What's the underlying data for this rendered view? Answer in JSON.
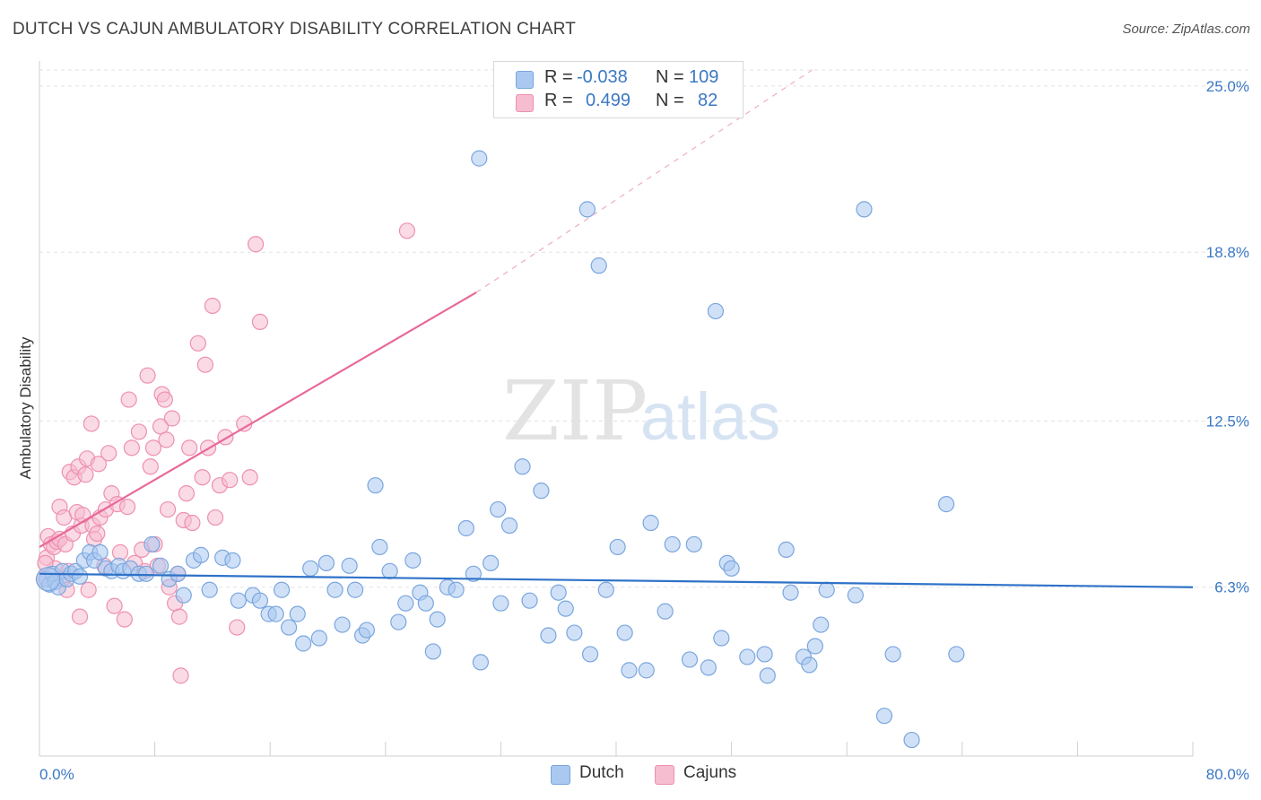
{
  "header": {
    "title": "DUTCH VS CAJUN AMBULATORY DISABILITY CORRELATION CHART",
    "source": "Source: ZipAtlas.com"
  },
  "watermark": {
    "zip": "ZIP",
    "atlas": "atlas"
  },
  "legend": {
    "r_label": "R =",
    "n_label": "N =",
    "dutch": {
      "r": "-0.038",
      "n": "109"
    },
    "cajun": {
      "r": "0.499",
      "n": "82"
    }
  },
  "colors": {
    "dutch_fill": "#aac8f0",
    "dutch_stroke": "#7aa6de",
    "dutch_line": "#2f72c8",
    "cajun_fill": "#f6bcd0",
    "cajun_stroke": "#ee90b0",
    "cajun_line": "#e8689a",
    "axis_label": "#3b78c4"
  },
  "chart_data": {
    "type": "scatter",
    "title": "DUTCH VS CAJUN AMBULATORY DISABILITY CORRELATION CHART",
    "xlabel": "",
    "ylabel": "Ambulatory Disability",
    "xlim": [
      0,
      80
    ],
    "ylim": [
      0,
      25.6
    ],
    "x_tick_labels": [
      "0.0%",
      "80.0%"
    ],
    "y_ticks": [
      6.3,
      12.5,
      18.8,
      25.0
    ],
    "y_tick_labels": [
      "6.3%",
      "12.5%",
      "18.8%",
      "25.0%"
    ],
    "grid": true,
    "legend_position": "top-center",
    "series": [
      {
        "name": "Dutch",
        "r": -0.038,
        "n": 109,
        "trend": {
          "x": [
            0,
            80
          ],
          "y": [
            6.8,
            6.3
          ]
        },
        "points": [
          [
            0.5,
            6.6
          ],
          [
            0.7,
            6.4
          ],
          [
            0.9,
            6.8
          ],
          [
            1.1,
            6.5
          ],
          [
            1.3,
            6.3
          ],
          [
            1.6,
            6.9
          ],
          [
            1.9,
            6.6
          ],
          [
            2.2,
            6.8
          ],
          [
            2.5,
            6.9
          ],
          [
            2.8,
            6.7
          ],
          [
            3.1,
            7.3
          ],
          [
            3.5,
            7.6
          ],
          [
            3.8,
            7.3
          ],
          [
            4.2,
            7.6
          ],
          [
            4.6,
            7.0
          ],
          [
            5.0,
            6.9
          ],
          [
            5.5,
            7.1
          ],
          [
            5.8,
            6.9
          ],
          [
            6.3,
            7.0
          ],
          [
            6.9,
            6.8
          ],
          [
            7.4,
            6.8
          ],
          [
            7.8,
            7.9
          ],
          [
            8.4,
            7.1
          ],
          [
            9.0,
            6.6
          ],
          [
            9.6,
            6.8
          ],
          [
            10.0,
            6.0
          ],
          [
            10.7,
            7.3
          ],
          [
            11.2,
            7.5
          ],
          [
            11.8,
            6.2
          ],
          [
            12.7,
            7.4
          ],
          [
            13.4,
            7.3
          ],
          [
            13.8,
            5.8
          ],
          [
            14.8,
            6.0
          ],
          [
            15.3,
            5.8
          ],
          [
            15.9,
            5.3
          ],
          [
            16.4,
            5.3
          ],
          [
            16.8,
            6.2
          ],
          [
            17.3,
            4.8
          ],
          [
            17.9,
            5.3
          ],
          [
            18.3,
            4.2
          ],
          [
            18.8,
            7.0
          ],
          [
            19.4,
            4.4
          ],
          [
            19.9,
            7.2
          ],
          [
            20.5,
            6.2
          ],
          [
            21.0,
            4.9
          ],
          [
            21.5,
            7.1
          ],
          [
            21.9,
            6.2
          ],
          [
            22.4,
            4.5
          ],
          [
            22.7,
            4.7
          ],
          [
            23.3,
            10.1
          ],
          [
            23.6,
            7.8
          ],
          [
            24.3,
            6.9
          ],
          [
            24.9,
            5.0
          ],
          [
            25.4,
            5.7
          ],
          [
            25.9,
            7.3
          ],
          [
            26.4,
            6.1
          ],
          [
            26.8,
            5.7
          ],
          [
            27.3,
            3.9
          ],
          [
            27.6,
            5.1
          ],
          [
            28.3,
            6.3
          ],
          [
            28.9,
            6.2
          ],
          [
            29.6,
            8.5
          ],
          [
            30.1,
            6.8
          ],
          [
            30.6,
            3.5
          ],
          [
            31.3,
            7.2
          ],
          [
            31.8,
            9.2
          ],
          [
            32.0,
            5.7
          ],
          [
            32.6,
            8.6
          ],
          [
            33.5,
            10.8
          ],
          [
            34.0,
            5.8
          ],
          [
            34.8,
            9.9
          ],
          [
            35.3,
            4.5
          ],
          [
            36.0,
            6.1
          ],
          [
            36.5,
            5.5
          ],
          [
            37.1,
            4.6
          ],
          [
            38.0,
            20.4
          ],
          [
            38.2,
            3.8
          ],
          [
            38.8,
            18.3
          ],
          [
            39.3,
            6.2
          ],
          [
            40.1,
            7.8
          ],
          [
            40.6,
            4.6
          ],
          [
            40.9,
            3.2
          ],
          [
            42.1,
            3.2
          ],
          [
            42.4,
            8.7
          ],
          [
            43.4,
            5.4
          ],
          [
            43.9,
            7.9
          ],
          [
            45.1,
            3.6
          ],
          [
            45.4,
            7.9
          ],
          [
            46.4,
            3.3
          ],
          [
            46.9,
            16.6
          ],
          [
            47.3,
            4.4
          ],
          [
            47.7,
            7.2
          ],
          [
            48.0,
            7.0
          ],
          [
            49.1,
            3.7
          ],
          [
            50.3,
            3.8
          ],
          [
            50.5,
            3.0
          ],
          [
            51.8,
            7.7
          ],
          [
            52.1,
            6.1
          ],
          [
            53.0,
            3.7
          ],
          [
            53.4,
            3.4
          ],
          [
            53.8,
            4.1
          ],
          [
            54.2,
            4.9
          ],
          [
            54.6,
            6.2
          ],
          [
            56.6,
            6.0
          ],
          [
            57.2,
            20.4
          ],
          [
            58.6,
            1.5
          ],
          [
            59.2,
            3.8
          ],
          [
            60.5,
            0.6
          ],
          [
            62.9,
            9.4
          ],
          [
            63.6,
            3.8
          ],
          [
            30.5,
            22.3
          ]
        ]
      },
      {
        "name": "Cajuns",
        "r": 0.499,
        "n": 82,
        "trend": {
          "x": [
            0,
            30.3
          ],
          "y": [
            7.8,
            17.3
          ]
        },
        "trend_dashed": {
          "x": [
            30.3,
            53.6
          ],
          "y": [
            17.3,
            25.6
          ]
        },
        "points": [
          [
            0.3,
            6.6
          ],
          [
            0.5,
            7.4
          ],
          [
            0.6,
            8.2
          ],
          [
            0.8,
            7.9
          ],
          [
            1.0,
            7.8
          ],
          [
            1.1,
            7.0
          ],
          [
            1.2,
            8.0
          ],
          [
            1.4,
            8.1
          ],
          [
            1.4,
            9.3
          ],
          [
            1.6,
            6.6
          ],
          [
            1.7,
            8.9
          ],
          [
            1.8,
            7.9
          ],
          [
            2.0,
            6.9
          ],
          [
            2.1,
            10.6
          ],
          [
            2.3,
            8.3
          ],
          [
            2.4,
            10.4
          ],
          [
            2.6,
            9.1
          ],
          [
            2.7,
            10.8
          ],
          [
            2.9,
            8.6
          ],
          [
            3.0,
            9.0
          ],
          [
            3.2,
            10.5
          ],
          [
            3.3,
            11.1
          ],
          [
            3.4,
            6.2
          ],
          [
            3.6,
            12.4
          ],
          [
            3.7,
            8.6
          ],
          [
            3.8,
            8.1
          ],
          [
            4.1,
            10.9
          ],
          [
            4.2,
            8.9
          ],
          [
            4.5,
            7.1
          ],
          [
            4.6,
            9.2
          ],
          [
            4.8,
            11.3
          ],
          [
            5.0,
            9.8
          ],
          [
            5.2,
            5.6
          ],
          [
            5.4,
            9.4
          ],
          [
            5.6,
            7.6
          ],
          [
            6.1,
            9.3
          ],
          [
            6.2,
            13.3
          ],
          [
            6.4,
            11.5
          ],
          [
            6.9,
            12.1
          ],
          [
            7.1,
            7.7
          ],
          [
            7.3,
            6.9
          ],
          [
            7.5,
            14.2
          ],
          [
            7.7,
            10.8
          ],
          [
            7.9,
            11.5
          ],
          [
            8.0,
            7.9
          ],
          [
            8.2,
            7.1
          ],
          [
            8.4,
            12.3
          ],
          [
            8.5,
            13.5
          ],
          [
            8.7,
            13.3
          ],
          [
            8.8,
            11.8
          ],
          [
            9.0,
            6.3
          ],
          [
            9.2,
            12.6
          ],
          [
            9.4,
            5.7
          ],
          [
            9.6,
            6.8
          ],
          [
            9.8,
            3.0
          ],
          [
            10.0,
            8.8
          ],
          [
            10.2,
            9.8
          ],
          [
            10.4,
            11.5
          ],
          [
            10.6,
            8.7
          ],
          [
            11.0,
            15.4
          ],
          [
            11.3,
            10.4
          ],
          [
            11.5,
            14.6
          ],
          [
            11.7,
            11.5
          ],
          [
            12.0,
            16.8
          ],
          [
            12.2,
            8.9
          ],
          [
            12.5,
            10.1
          ],
          [
            12.9,
            11.9
          ],
          [
            13.2,
            10.3
          ],
          [
            13.7,
            4.8
          ],
          [
            14.2,
            12.4
          ],
          [
            14.6,
            10.4
          ],
          [
            15.0,
            19.1
          ],
          [
            15.3,
            16.2
          ],
          [
            0.4,
            7.2
          ],
          [
            1.9,
            6.2
          ],
          [
            2.8,
            5.2
          ],
          [
            4.0,
            8.3
          ],
          [
            5.9,
            5.1
          ],
          [
            6.6,
            7.2
          ],
          [
            8.9,
            9.2
          ],
          [
            9.7,
            5.2
          ],
          [
            25.5,
            19.6
          ]
        ]
      }
    ]
  }
}
